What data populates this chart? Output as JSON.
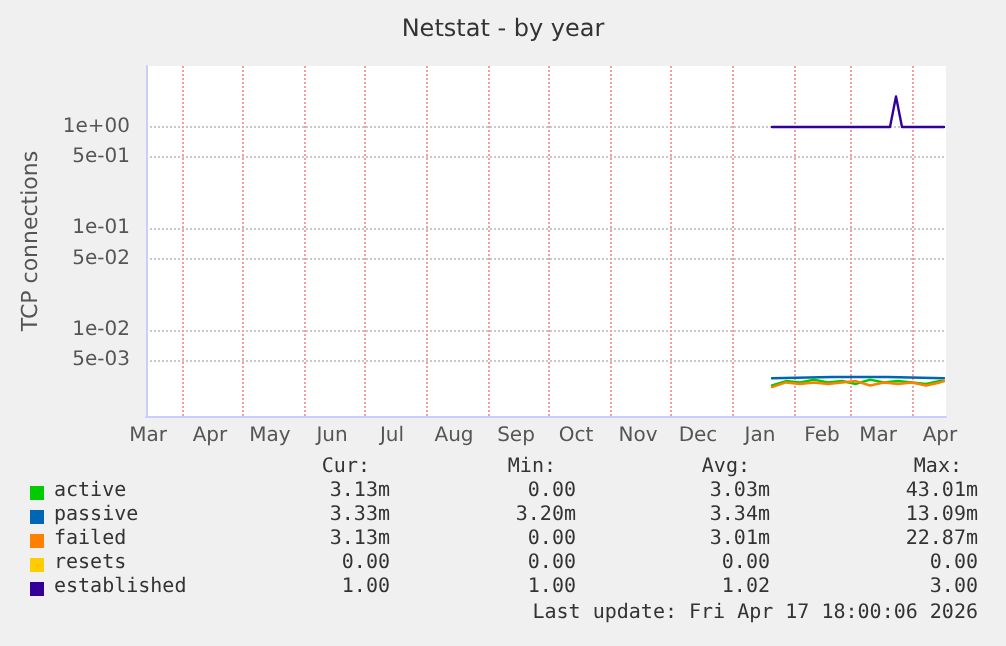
{
  "chart_data": {
    "type": "line",
    "title": "Netstat - by year",
    "ylabel": "TCP connections",
    "log": "y",
    "grid": true,
    "legend": "bottom",
    "marker": "none",
    "line_style": "solid",
    "xlim": [
      "2025-03-14",
      "2026-04-18"
    ],
    "xticks": [
      {
        "value": "2025-03-15",
        "label": "Mar"
      },
      {
        "value": "2025-04-15",
        "label": "Apr"
      },
      {
        "value": "2025-05-15",
        "label": "May"
      },
      {
        "value": "2025-06-15",
        "label": "Jun"
      },
      {
        "value": "2025-07-15",
        "label": "Jul"
      },
      {
        "value": "2025-08-15",
        "label": "Aug"
      },
      {
        "value": "2025-09-15",
        "label": "Sep"
      },
      {
        "value": "2025-10-15",
        "label": "Oct"
      },
      {
        "value": "2025-11-15",
        "label": "Nov"
      },
      {
        "value": "2025-12-15",
        "label": "Dec"
      },
      {
        "value": "2026-01-15",
        "label": "Jan"
      },
      {
        "value": "2026-02-15",
        "label": "Feb"
      },
      {
        "value": "2026-03-15",
        "label": "Mar"
      },
      {
        "value": "2026-04-15",
        "label": "Apr"
      },
      {
        "value": "2025-04-01",
        "label": null
      },
      {
        "value": "2025-05-01",
        "label": null
      },
      {
        "value": "2025-06-01",
        "label": null
      },
      {
        "value": "2025-07-01",
        "label": null
      },
      {
        "value": "2025-08-01",
        "label": null
      },
      {
        "value": "2025-09-01",
        "label": null
      },
      {
        "value": "2025-10-01",
        "label": null
      },
      {
        "value": "2025-11-01",
        "label": null
      },
      {
        "value": "2025-12-01",
        "label": null
      },
      {
        "value": "2026-01-01",
        "label": null
      },
      {
        "value": "2026-02-01",
        "label": null
      },
      {
        "value": "2026-03-01",
        "label": null
      },
      {
        "value": "2026-04-01",
        "label": null
      }
    ],
    "ylim": [
      0.0014,
      4
    ],
    "yticks": [
      {
        "value": 1,
        "label": "1e+00"
      },
      {
        "value": 0.5,
        "label": "5e-01"
      },
      {
        "value": 0.1,
        "label": "1e-01"
      },
      {
        "value": 0.05,
        "label": "5e-02"
      },
      {
        "value": 0.01,
        "label": "1e-02"
      },
      {
        "value": 0.005,
        "label": "5e-03"
      }
    ],
    "series": [
      {
        "name": "active",
        "color": "#00cc00",
        "x": [
          "2026-01-21",
          "2026-01-28",
          "2026-02-04",
          "2026-02-11",
          "2026-02-18",
          "2026-02-25",
          "2026-03-04",
          "2026-03-11",
          "2026-03-18",
          "2026-03-25",
          "2026-04-01",
          "2026-04-08",
          "2026-04-15",
          "2026-04-17"
        ],
        "values": [
          0.0028,
          0.0031,
          0.003,
          0.0032,
          0.003,
          0.0031,
          0.0029,
          0.0032,
          0.003,
          0.0031,
          0.003,
          0.0029,
          0.0031,
          0.0031
        ]
      },
      {
        "name": "passive",
        "color": "#0066b3",
        "x": [
          "2026-01-21",
          "2026-02-20",
          "2026-03-20",
          "2026-04-17"
        ],
        "values": [
          0.0033,
          0.0034,
          0.0034,
          0.0033
        ]
      },
      {
        "name": "failed",
        "color": "#ff8000",
        "x": [
          "2026-01-21",
          "2026-01-28",
          "2026-02-04",
          "2026-02-11",
          "2026-02-18",
          "2026-02-25",
          "2026-03-04",
          "2026-03-11",
          "2026-03-18",
          "2026-03-25",
          "2026-04-01",
          "2026-04-08",
          "2026-04-15",
          "2026-04-17"
        ],
        "values": [
          0.0027,
          0.003,
          0.0029,
          0.003,
          0.0029,
          0.003,
          0.0031,
          0.0028,
          0.003,
          0.0029,
          0.003,
          0.0028,
          0.003,
          0.0031
        ]
      },
      {
        "name": "resets",
        "color": "#ffcc00"
      },
      {
        "name": "established",
        "color": "#330099",
        "x": [
          "2026-01-21",
          "2026-03-21",
          "2026-03-24",
          "2026-03-27",
          "2026-04-17"
        ],
        "values": [
          1,
          1,
          2,
          1,
          1
        ]
      }
    ],
    "annotations": [
      "Cur:",
      "Min:",
      "Avg:",
      "Max:",
      "3.13m",
      "0.00",
      "3.03m",
      "43.01m",
      "3.33m",
      "3.20m",
      "3.34m",
      "13.09m",
      "3.13m",
      "0.00",
      "3.01m",
      "22.87m",
      "0.00",
      "0.00",
      "0.00",
      "0.00",
      "1.00",
      "1.00",
      "1.02",
      "3.00",
      "Last update: Fri Apr 17 18:00:06 2026"
    ]
  }
}
